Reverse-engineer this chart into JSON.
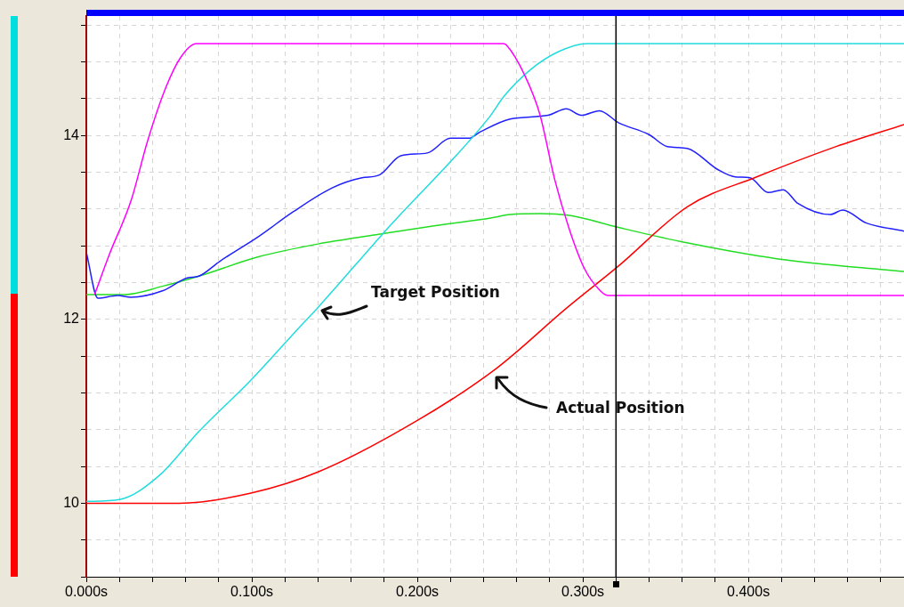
{
  "chart_data": {
    "type": "line",
    "xlim": [
      0,
      0.494
    ],
    "ylim": [
      9.2,
      15.3
    ],
    "xticks": [
      {
        "value": 0,
        "label": "0.000s"
      },
      {
        "value": 0.02,
        "label": null
      },
      {
        "value": 0.04,
        "label": null
      },
      {
        "value": 0.06,
        "label": null
      },
      {
        "value": 0.08,
        "label": null
      },
      {
        "value": 0.1,
        "label": "0.100s"
      },
      {
        "value": 0.12,
        "label": null
      },
      {
        "value": 0.14,
        "label": null
      },
      {
        "value": 0.16,
        "label": null
      },
      {
        "value": 0.18,
        "label": null
      },
      {
        "value": 0.2,
        "label": "0.200s"
      },
      {
        "value": 0.22,
        "label": null
      },
      {
        "value": 0.24,
        "label": null
      },
      {
        "value": 0.26,
        "label": null
      },
      {
        "value": 0.28,
        "label": null
      },
      {
        "value": 0.3,
        "label": "0.300s"
      },
      {
        "value": 0.32,
        "label": null
      },
      {
        "value": 0.34,
        "label": null
      },
      {
        "value": 0.36,
        "label": null
      },
      {
        "value": 0.38,
        "label": null
      },
      {
        "value": 0.4,
        "label": "0.400s"
      },
      {
        "value": 0.42,
        "label": null
      },
      {
        "value": 0.44,
        "label": null
      },
      {
        "value": 0.46,
        "label": null
      },
      {
        "value": 0.48,
        "label": null
      }
    ],
    "yticks": [
      {
        "value": 9.2,
        "label": null
      },
      {
        "value": 9.6,
        "label": null
      },
      10,
      {
        "value": 10.4,
        "label": null
      },
      {
        "value": 10.8,
        "label": null
      },
      {
        "value": 11.2,
        "label": null
      },
      {
        "value": 11.6,
        "label": null
      },
      12,
      {
        "value": 12.4,
        "label": null
      },
      {
        "value": 12.8,
        "label": null
      },
      {
        "value": 13.2,
        "label": null
      },
      {
        "value": 13.6,
        "label": null
      },
      14,
      {
        "value": 14.4,
        "label": null
      },
      {
        "value": 14.8,
        "label": null
      },
      {
        "value": 15.2,
        "label": null
      }
    ],
    "grid": true,
    "series": [
      {
        "color": "#ff00ff",
        "x": [
          0.005,
          0.014,
          0.027,
          0.037,
          0.048,
          0.057,
          0.0665,
          0.252,
          0.254,
          0.265,
          0.274,
          0.283,
          0.292,
          0.301,
          0.31,
          0.315,
          0.494
        ],
        "values": [
          12.27,
          12.71,
          13.29,
          13.94,
          14.52,
          14.85,
          15.0,
          15.0,
          14.98,
          14.65,
          14.23,
          13.52,
          12.97,
          12.55,
          12.32,
          12.26,
          12.26
        ]
      },
      {
        "color": "#20dcdc",
        "x": [
          0,
          0.02,
          0.044,
          0.068,
          0.0995,
          0.128,
          0.14,
          0.181,
          0.2435,
          0.2525,
          0.2686,
          0.285,
          0.3027,
          0.494
        ],
        "values": [
          10.02,
          10.04,
          10.3,
          10.78,
          11.34,
          11.9,
          12.13,
          12.97,
          14.2,
          14.43,
          14.72,
          14.91,
          15.0,
          15.0
        ]
      },
      {
        "color": "#ff0000",
        "x": [
          0,
          0.056,
          0.0995,
          0.14,
          0.2,
          0.248,
          0.29,
          0.3215,
          0.3635,
          0.405,
          0.453,
          0.494
        ],
        "values": [
          10.0,
          10.0,
          10.11,
          10.34,
          10.9,
          11.47,
          12.12,
          12.58,
          13.23,
          13.55,
          13.88,
          14.12
        ]
      },
      {
        "color": "#2020ff",
        "x": [
          0,
          0.007,
          0.019,
          0.027,
          0.046,
          0.061,
          0.068,
          0.0805,
          0.104,
          0.125,
          0.1485,
          0.1665,
          0.177,
          0.19,
          0.206,
          0.22,
          0.231,
          0.238,
          0.256,
          0.279,
          0.29,
          0.299,
          0.31,
          0.3215,
          0.34,
          0.351,
          0.363,
          0.3815,
          0.392,
          0.401,
          0.412,
          0.421,
          0.43,
          0.4495,
          0.457,
          0.471,
          0.494
        ],
        "values": [
          12.73,
          12.23,
          12.26,
          12.24,
          12.31,
          12.45,
          12.47,
          12.63,
          12.9,
          13.17,
          13.43,
          13.54,
          13.57,
          13.78,
          13.81,
          13.97,
          13.97,
          14.04,
          14.18,
          14.22,
          14.29,
          14.22,
          14.27,
          14.14,
          14.01,
          13.88,
          13.86,
          13.63,
          13.55,
          13.54,
          13.38,
          13.41,
          13.26,
          13.14,
          13.19,
          13.05,
          12.96
        ]
      },
      {
        "color": "#22dd22",
        "x": [
          0,
          0.023,
          0.046,
          0.068,
          0.104,
          0.14,
          0.175,
          0.211,
          0.2435,
          0.256,
          0.274,
          0.292,
          0.3215,
          0.3635,
          0.417,
          0.494
        ],
        "values": [
          12.27,
          12.27,
          12.36,
          12.47,
          12.68,
          12.82,
          12.92,
          13.02,
          13.1,
          13.14,
          13.15,
          13.13,
          13.0,
          12.83,
          12.66,
          12.52
        ]
      }
    ],
    "ref_lines": [
      {
        "axis": "x",
        "value": 0.32,
        "color": "#000000"
      }
    ],
    "annotations": [
      "Target Position",
      "Actual Position"
    ]
  }
}
